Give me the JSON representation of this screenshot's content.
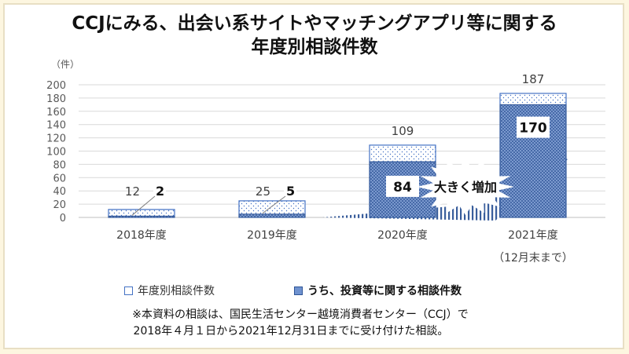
{
  "title_line1": "CCJにみる、出会い系サイトやマッチングアプリ等に関する",
  "title_line2": "年度別相談件数",
  "colors": {
    "total_border": "#4472c4",
    "investment_fill": "#6f92cf",
    "arrow": "#2f5597",
    "background": "#fdf6e0"
  },
  "chart_data": {
    "type": "bar",
    "y_unit_label": "（件）",
    "ylim": [
      0,
      200
    ],
    "yticks": [
      0,
      20,
      40,
      60,
      80,
      100,
      120,
      140,
      160,
      180,
      200
    ],
    "grid": true,
    "categories": [
      "2018年度",
      "2019年度",
      "2020年度",
      "2021年度"
    ],
    "category_sublabels": [
      "",
      "",
      "",
      "（12月末まで）"
    ],
    "series": [
      {
        "name": "年度別相談件数",
        "values": [
          12,
          25,
          109,
          187
        ]
      },
      {
        "name": "うち、投資等に関する相談件数",
        "values": [
          2,
          5,
          84,
          170
        ]
      }
    ],
    "annotation": "大きく増加",
    "legend_position": "bottom"
  },
  "footnote_line1": "※本資料の相談は、国民生活センター越境消費者センター（CCJ）で",
  "footnote_line2": "2018年４月１日から2021年12月31日までに受け付けた相談。"
}
